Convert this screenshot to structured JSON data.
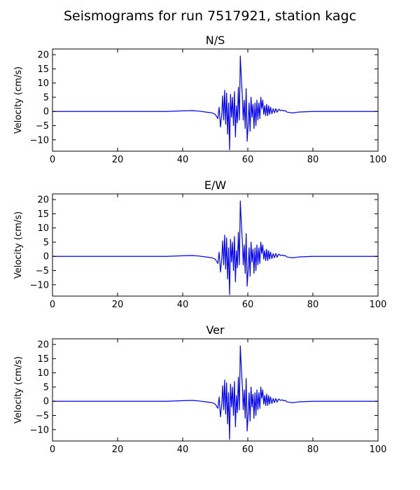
{
  "figure": {
    "suptitle": "Seismograms for run 7517921, station kagc"
  },
  "chart_data": [
    {
      "type": "line",
      "title": "N/S",
      "xlabel": "",
      "ylabel": "Velocity (cm/s)",
      "xlim": [
        0,
        100
      ],
      "ylim": [
        -14,
        22
      ],
      "xticks": [
        0,
        20,
        40,
        60,
        80,
        100
      ],
      "yticks": [
        -10,
        -5,
        0,
        5,
        10,
        15,
        20
      ],
      "grid": false,
      "series": [
        {
          "color": "#0000ff",
          "x": [
            0,
            10,
            20,
            30,
            35,
            40,
            43,
            45,
            47,
            49,
            50,
            50.8,
            51.2,
            51.6,
            52,
            52.3,
            52.6,
            52.9,
            53.2,
            53.5,
            53.8,
            54.1,
            54.4,
            54.7,
            55,
            55.3,
            55.6,
            55.9,
            56.2,
            56.5,
            56.8,
            57.1,
            57.4,
            57.7,
            58,
            58.3,
            58.6,
            58.9,
            59.2,
            59.5,
            59.8,
            60.1,
            60.4,
            60.7,
            61,
            61.3,
            61.6,
            61.9,
            62.2,
            62.5,
            62.8,
            63.1,
            63.4,
            63.7,
            64,
            64.3,
            64.6,
            64.9,
            65.2,
            65.5,
            65.8,
            66.1,
            66.4,
            66.7,
            67,
            67.4,
            67.8,
            68.2,
            68.6,
            69,
            69.5,
            70,
            70.5,
            71,
            71.5,
            72,
            73,
            74,
            75,
            76,
            78,
            80,
            85,
            90,
            95,
            100
          ],
          "values": [
            0,
            0,
            0,
            0,
            0,
            0.2,
            0.3,
            0.1,
            -0.2,
            -0.5,
            -1,
            -2.5,
            1.5,
            -5.5,
            -1,
            5.5,
            -3,
            7.5,
            -4.5,
            6.5,
            -8,
            3,
            -13.5,
            6,
            -2,
            5,
            -5,
            7,
            -9,
            2,
            -4,
            8.5,
            -3,
            19.5,
            12,
            6,
            -3,
            4,
            -6,
            8,
            -10.5,
            -5,
            3,
            -7,
            5,
            -2,
            2.5,
            -6,
            3,
            -5,
            4,
            -3,
            3,
            -2.5,
            5,
            1,
            4,
            -1,
            2,
            -1.5,
            2.5,
            -1.5,
            2,
            -1,
            1.5,
            -0.8,
            1,
            -0.5,
            1,
            -0.3,
            0.8,
            0.3,
            0.5,
            0.2,
            0.3,
            -0.2,
            -0.4,
            -0.5,
            -0.3,
            -0.2,
            -0.1,
            0,
            0,
            0,
            0,
            0
          ]
        }
      ]
    },
    {
      "type": "line",
      "title": "E/W",
      "xlabel": "",
      "ylabel": "Velocity (cm/s)",
      "xlim": [
        0,
        100
      ],
      "ylim": [
        -14,
        22
      ],
      "xticks": [
        0,
        20,
        40,
        60,
        80,
        100
      ],
      "yticks": [
        -10,
        -5,
        0,
        5,
        10,
        15,
        20
      ],
      "grid": false,
      "series": [
        {
          "color": "#0000ff",
          "x": [
            0,
            10,
            20,
            30,
            35,
            40,
            43,
            45,
            47,
            49,
            50,
            50.8,
            51.2,
            51.6,
            52,
            52.3,
            52.6,
            52.9,
            53.2,
            53.5,
            53.8,
            54.1,
            54.4,
            54.7,
            55,
            55.3,
            55.6,
            55.9,
            56.2,
            56.5,
            56.8,
            57.1,
            57.4,
            57.7,
            58,
            58.3,
            58.6,
            58.9,
            59.2,
            59.5,
            59.8,
            60.1,
            60.4,
            60.7,
            61,
            61.3,
            61.6,
            61.9,
            62.2,
            62.5,
            62.8,
            63.1,
            63.4,
            63.7,
            64,
            64.3,
            64.6,
            64.9,
            65.2,
            65.5,
            65.8,
            66.1,
            66.4,
            66.7,
            67,
            67.4,
            67.8,
            68.2,
            68.6,
            69,
            69.5,
            70,
            70.5,
            71,
            71.5,
            72,
            73,
            74,
            75,
            76,
            78,
            80,
            85,
            90,
            95,
            100
          ],
          "values": [
            0,
            0,
            0,
            0,
            0,
            0.2,
            0.3,
            0.1,
            -0.2,
            -0.5,
            -1,
            -2.5,
            1.5,
            -5.5,
            -1,
            5.5,
            -3,
            7.5,
            -4.5,
            6.5,
            -8,
            3,
            -13.5,
            6,
            -2,
            5,
            -5,
            7,
            -9,
            2,
            -4,
            8.5,
            -3,
            19.5,
            12,
            6,
            -3,
            4,
            -6,
            8,
            -10.5,
            -5,
            3,
            -7,
            5,
            -2,
            2.5,
            -6,
            3,
            -5,
            4,
            -3,
            3,
            -2.5,
            5,
            1,
            4,
            -1,
            2,
            -1.5,
            2.5,
            -1.5,
            2,
            -1,
            1.5,
            -0.8,
            1,
            -0.5,
            1,
            -0.3,
            0.8,
            0.3,
            0.5,
            0.2,
            0.3,
            -0.2,
            -0.4,
            -0.5,
            -0.3,
            -0.2,
            -0.1,
            0,
            0,
            0,
            0,
            0
          ]
        }
      ]
    },
    {
      "type": "line",
      "title": "Ver",
      "xlabel": "",
      "ylabel": "Velocity (cm/s)",
      "xlim": [
        0,
        100
      ],
      "ylim": [
        -14,
        22
      ],
      "xticks": [
        0,
        20,
        40,
        60,
        80,
        100
      ],
      "yticks": [
        -10,
        -5,
        0,
        5,
        10,
        15,
        20
      ],
      "grid": false,
      "series": [
        {
          "color": "#0000ff",
          "x": [
            0,
            10,
            20,
            30,
            35,
            40,
            43,
            45,
            47,
            49,
            50,
            50.8,
            51.2,
            51.6,
            52,
            52.3,
            52.6,
            52.9,
            53.2,
            53.5,
            53.8,
            54.1,
            54.4,
            54.7,
            55,
            55.3,
            55.6,
            55.9,
            56.2,
            56.5,
            56.8,
            57.1,
            57.4,
            57.7,
            58,
            58.3,
            58.6,
            58.9,
            59.2,
            59.5,
            59.8,
            60.1,
            60.4,
            60.7,
            61,
            61.3,
            61.6,
            61.9,
            62.2,
            62.5,
            62.8,
            63.1,
            63.4,
            63.7,
            64,
            64.3,
            64.6,
            64.9,
            65.2,
            65.5,
            65.8,
            66.1,
            66.4,
            66.7,
            67,
            67.4,
            67.8,
            68.2,
            68.6,
            69,
            69.5,
            70,
            70.5,
            71,
            71.5,
            72,
            73,
            74,
            75,
            76,
            78,
            80,
            85,
            90,
            95,
            100
          ],
          "values": [
            0,
            0,
            0,
            0,
            0,
            0.2,
            0.3,
            0.1,
            -0.2,
            -0.5,
            -1,
            -2.5,
            1.5,
            -5.5,
            -1,
            5.5,
            -3,
            7.5,
            -4.5,
            6.5,
            -8,
            3,
            -13.5,
            6,
            -2,
            5,
            -5,
            7,
            -9,
            2,
            -4,
            8.5,
            -3,
            19.5,
            12,
            6,
            -3,
            4,
            -6,
            8,
            -10.5,
            -5,
            3,
            -7,
            5,
            -2,
            2.5,
            -6,
            3,
            -5,
            4,
            -3,
            3,
            -2.5,
            5,
            1,
            4,
            -1,
            2,
            -1.5,
            2.5,
            -1.5,
            2,
            -1,
            1.5,
            -0.8,
            1,
            -0.5,
            1,
            -0.3,
            0.8,
            0.3,
            0.5,
            0.2,
            0.3,
            -0.2,
            -0.4,
            -0.5,
            -0.3,
            -0.2,
            -0.1,
            0,
            0,
            0,
            0,
            0
          ]
        }
      ]
    }
  ]
}
